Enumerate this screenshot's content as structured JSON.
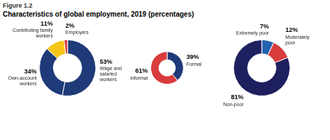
{
  "title": "Characteristics of global employment, 2019 (percentages)",
  "annotations": [
    "Figure 1.2"
  ],
  "chart_data": [
    {
      "type": "doughnut",
      "categories": [
        "Wage and\nsalaried\nworkers",
        "Own-account\nworkers",
        "Contributing family\nworkers",
        "Employers"
      ],
      "values": [
        53,
        34,
        11,
        2
      ],
      "value_labels": [
        "53%",
        "34%",
        "11%",
        "2%"
      ],
      "colors": [
        "#1e3a78",
        "#1e3a78",
        "#f5c518",
        "#d93c3c"
      ],
      "data_labels": true
    },
    {
      "type": "doughnut",
      "categories": [
        "Formal",
        "Informal"
      ],
      "values": [
        39,
        61
      ],
      "value_labels": [
        "39%",
        "61%"
      ],
      "colors": [
        "#1e3a78",
        "#d93c3c"
      ],
      "data_labels": true
    },
    {
      "type": "doughnut",
      "categories": [
        "Extremely poor",
        "Moderately\npoor",
        "Non-poor"
      ],
      "values": [
        7,
        12,
        81
      ],
      "value_labels": [
        "7%",
        "12%",
        "81%"
      ],
      "colors": [
        "#2563b0",
        "#d93c3c",
        "#1e1f5e"
      ],
      "data_labels": true
    }
  ]
}
